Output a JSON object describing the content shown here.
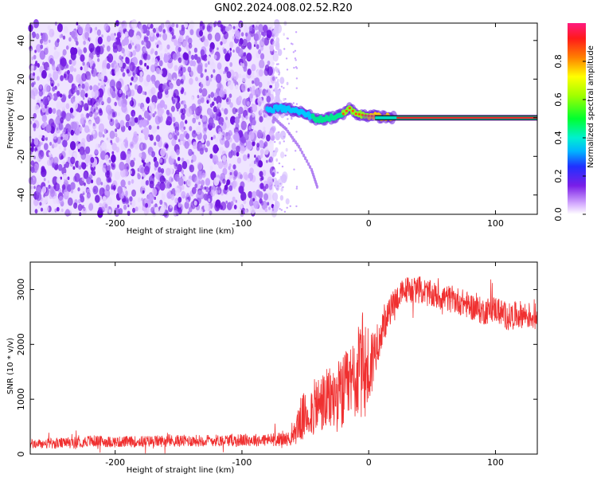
{
  "title": "GN02.2024.008.02.52.R20",
  "chart_data": [
    {
      "type": "heatmap",
      "title": "GN02.2024.008.02.52.R20",
      "xlabel": "Height of straight line (km)",
      "ylabel": "Frequency (Hz)",
      "xlim": [
        -267,
        133
      ],
      "ylim": [
        -50,
        49
      ],
      "xticks": [
        -200,
        -100,
        0,
        100
      ],
      "yticks": [
        -40,
        -20,
        0,
        20,
        40
      ],
      "colorbar": {
        "label": "Normalized spectral amplitude",
        "range": [
          0,
          1
        ],
        "ticks": [
          0.0,
          0.2,
          0.4,
          0.6,
          0.8
        ],
        "colormap": "rainbow (white-violet-blue-cyan-green-yellow-red-magenta)"
      },
      "noise_region_x": [
        -267,
        -75
      ],
      "signal_trace": {
        "x": [
          -80,
          -70,
          -60,
          -50,
          -40,
          -30,
          -20,
          -15,
          -10,
          0,
          20,
          60,
          133
        ],
        "y": [
          4,
          5,
          4,
          2,
          -1,
          0,
          2,
          5,
          2,
          1,
          0,
          0,
          0
        ]
      },
      "descending_branch": {
        "x": [
          -75,
          -65,
          -55,
          -45,
          -40
        ],
        "y": [
          0,
          -6,
          -15,
          -27,
          -37
        ]
      }
    },
    {
      "type": "line",
      "xlabel": "Height of straight line (km)",
      "ylabel": "SNR (10 * v/v)",
      "xlim": [
        -267,
        133
      ],
      "ylim": [
        0,
        3500
      ],
      "xticks": [
        -200,
        -100,
        0,
        100
      ],
      "yticks": [
        0,
        1000,
        2000,
        3000
      ],
      "color": "#f03030",
      "series": [
        {
          "x": [
            -267,
            -240,
            -220,
            -200,
            -160,
            -120,
            -80,
            -60,
            -55,
            -50,
            -40,
            -30,
            -20,
            -10,
            -5,
            0,
            5,
            10,
            20,
            30,
            40,
            50,
            60,
            70,
            80,
            90,
            100,
            110,
            120,
            133
          ],
          "y": [
            180,
            200,
            240,
            220,
            240,
            250,
            260,
            280,
            600,
            700,
            900,
            1000,
            1100,
            1400,
            1600,
            1500,
            1900,
            2200,
            2800,
            3000,
            3000,
            2900,
            2850,
            2800,
            2700,
            2600,
            2650,
            2500,
            2550,
            2500
          ],
          "noise_amplitude": [
            90,
            100,
            110,
            100,
            110,
            110,
            120,
            130,
            400,
            450,
            550,
            600,
            700,
            800,
            1000,
            900,
            450,
            300,
            250,
            250,
            250,
            250,
            250,
            250,
            250,
            250,
            250,
            250,
            250,
            250
          ]
        }
      ]
    }
  ]
}
